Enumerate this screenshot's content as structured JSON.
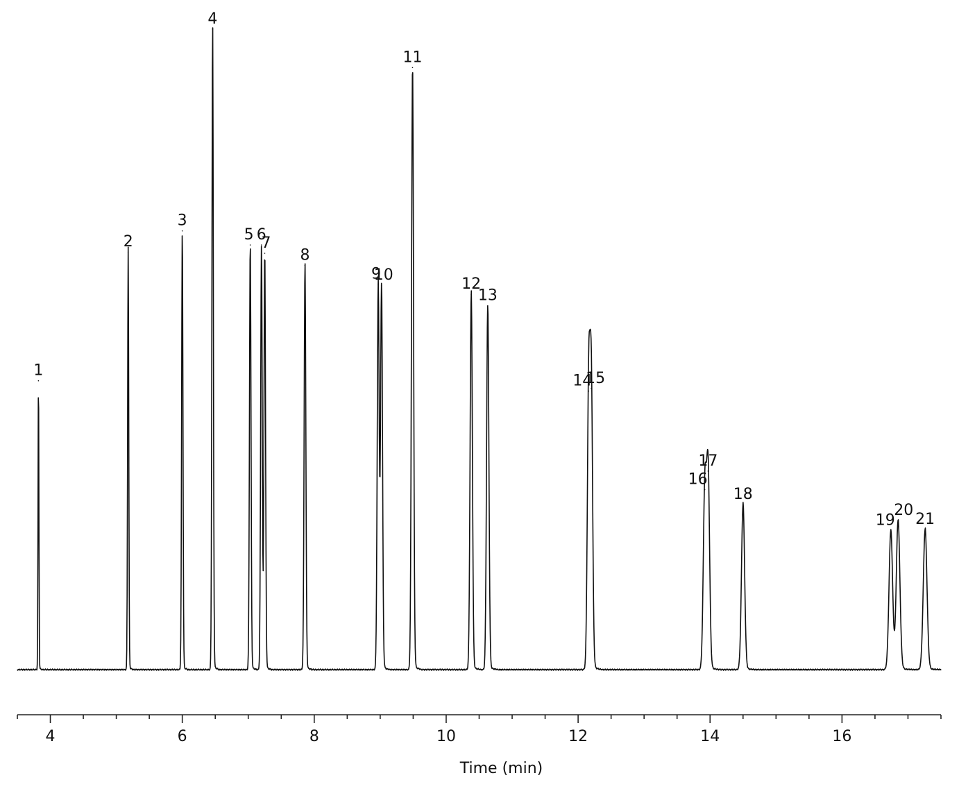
{
  "chart_data": {
    "type": "line",
    "title": "",
    "xlabel": "Time (min)",
    "ylabel": "",
    "xlim": [
      3.5,
      17.5
    ],
    "ylim": [
      0,
      100
    ],
    "grid": false,
    "x_ticks": [
      "4",
      "6",
      "8",
      "10",
      "12",
      "14",
      "16"
    ],
    "baseline": 0,
    "series": [
      {
        "peaks": [
          {
            "label": "1",
            "x": 3.82,
            "y": 45.1
          },
          {
            "label": "2",
            "x": 5.18,
            "y": 65.2
          },
          {
            "label": "3",
            "x": 6.0,
            "y": 68.5
          },
          {
            "label": "4",
            "x": 6.46,
            "y": 100.0
          },
          {
            "label": "5",
            "x": 7.03,
            "y": 66.3
          },
          {
            "label": "6",
            "x": 7.2,
            "y": 66.3
          },
          {
            "label": "7",
            "x": 7.25,
            "y": 65.0
          },
          {
            "label": "8",
            "x": 7.86,
            "y": 63.1
          },
          {
            "label": "9",
            "x": 8.97,
            "y": 60.2
          },
          {
            "label": "10",
            "x": 9.02,
            "y": 60.0
          },
          {
            "label": "11",
            "x": 9.49,
            "y": 94.0
          },
          {
            "label": "12",
            "x": 10.38,
            "y": 58.6
          },
          {
            "label": "13",
            "x": 10.63,
            "y": 56.8
          },
          {
            "label": "14",
            "x": 12.16,
            "y": 43.5
          },
          {
            "label": "15",
            "x": 12.2,
            "y": 43.9
          },
          {
            "label": "16",
            "x": 13.92,
            "y": 28.1
          },
          {
            "label": "17",
            "x": 13.97,
            "y": 31.0
          },
          {
            "label": "18",
            "x": 14.5,
            "y": 25.8
          },
          {
            "label": "19",
            "x": 16.74,
            "y": 21.7
          },
          {
            "label": "20",
            "x": 16.85,
            "y": 23.3
          },
          {
            "label": "21",
            "x": 17.26,
            "y": 21.9
          }
        ]
      }
    ]
  }
}
